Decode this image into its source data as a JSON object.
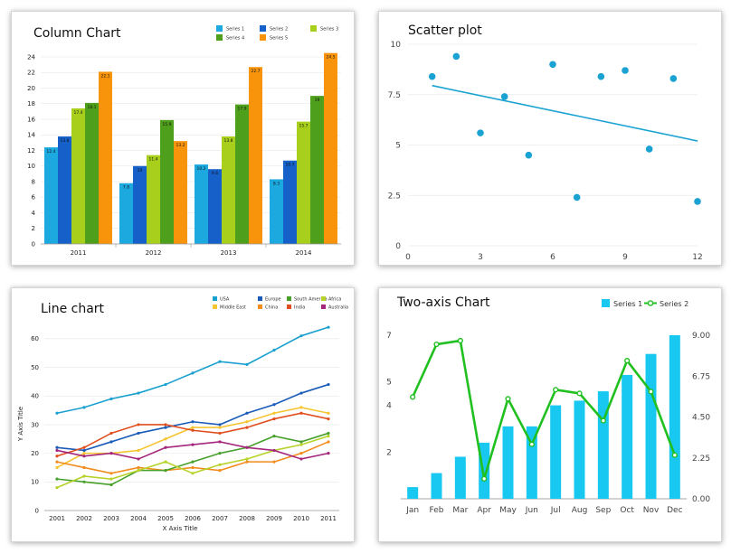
{
  "chart_data": [
    {
      "type": "bar",
      "title": "Column Chart",
      "categories": [
        "2011",
        "2012",
        "2013",
        "2014"
      ],
      "ylim": [
        0,
        24
      ],
      "yticks": [
        0,
        2,
        4,
        6,
        8,
        10,
        12,
        14,
        16,
        18,
        20,
        22,
        24
      ],
      "grid": true,
      "legend_position": "top-right",
      "series": [
        {
          "name": "Series 1",
          "color": "#1ba9e0",
          "values": [
            12.4,
            7.8,
            10.2,
            8.3
          ]
        },
        {
          "name": "Series 2",
          "color": "#1560c9",
          "values": [
            13.8,
            10,
            9.6,
            10.7
          ]
        },
        {
          "name": "Series 3",
          "color": "#a9cf1d",
          "values": [
            17.4,
            11.4,
            13.8,
            15.7
          ]
        },
        {
          "name": "Series 4",
          "color": "#4e9f1c",
          "values": [
            18.1,
            15.9,
            17.9,
            19
          ]
        },
        {
          "name": "Series 5",
          "color": "#f7940c",
          "values": [
            22.1,
            13.2,
            22.7,
            24.5
          ]
        }
      ]
    },
    {
      "type": "scatter",
      "title": "Scatter plot",
      "xlim": [
        0,
        12
      ],
      "xticks": [
        0,
        3,
        6,
        9,
        12
      ],
      "ylim": [
        0,
        10
      ],
      "yticks": [
        0,
        2.5,
        5,
        7.5,
        10
      ],
      "color": "#1aa3d2",
      "points": [
        {
          "x": 1,
          "y": 8.4
        },
        {
          "x": 2,
          "y": 9.4
        },
        {
          "x": 3,
          "y": 5.6
        },
        {
          "x": 4,
          "y": 7.4
        },
        {
          "x": 5,
          "y": 4.5
        },
        {
          "x": 6,
          "y": 9
        },
        {
          "x": 7,
          "y": 2.4
        },
        {
          "x": 8,
          "y": 8.4
        },
        {
          "x": 9,
          "y": 8.7
        },
        {
          "x": 10,
          "y": 4.8
        },
        {
          "x": 11,
          "y": 8.3
        },
        {
          "x": 12,
          "y": 2.2
        }
      ],
      "trendline": {
        "x": [
          1,
          12
        ],
        "y": [
          7.95,
          5.2
        ]
      }
    },
    {
      "type": "line",
      "title": "Line chart",
      "xlabel": "X Axis Title",
      "ylabel": "Y Axis Title",
      "categories": [
        "2001",
        "2002",
        "2003",
        "2004",
        "2005",
        "2006",
        "2007",
        "2008",
        "2009",
        "2010",
        "2011"
      ],
      "ylim": [
        0,
        65
      ],
      "yticks": [
        0,
        10,
        20,
        30,
        40,
        50,
        60
      ],
      "grid": true,
      "legend_position": "top-right",
      "series": [
        {
          "name": "USA",
          "color": "#1aa0cf",
          "values": [
            34,
            36,
            39,
            41,
            44,
            48,
            52,
            51,
            56,
            61,
            64
          ]
        },
        {
          "name": "Middle East",
          "color": "#f6c532",
          "values": [
            15,
            20,
            20,
            21,
            25,
            29,
            29,
            31,
            34,
            36,
            34
          ]
        },
        {
          "name": "Europe",
          "color": "#1a5bb8",
          "values": [
            22,
            21,
            24,
            27,
            29,
            31,
            30,
            34,
            37,
            41,
            44
          ]
        },
        {
          "name": "China",
          "color": "#f28c1c",
          "values": [
            17,
            15,
            13,
            15,
            14,
            15,
            14,
            17,
            17,
            20,
            24
          ]
        },
        {
          "name": "South America",
          "color": "#47a02a",
          "values": [
            11,
            10,
            9,
            14,
            14,
            17,
            20,
            22,
            26,
            24,
            27
          ]
        },
        {
          "name": "India",
          "color": "#e04e1f",
          "values": [
            19,
            22,
            27,
            30,
            30,
            28,
            27,
            29,
            32,
            34,
            32
          ]
        },
        {
          "name": "Africa",
          "color": "#b7d32a",
          "values": [
            8,
            12,
            11,
            14,
            17,
            13,
            16,
            18,
            21,
            23,
            26
          ]
        },
        {
          "name": "Australia",
          "color": "#a4277d",
          "values": [
            21,
            19,
            20,
            18,
            22,
            23,
            24,
            22,
            21,
            18,
            20
          ]
        }
      ]
    },
    {
      "type": "bar",
      "title": "Two-axis Chart",
      "categories": [
        "Jan",
        "Feb",
        "Mar",
        "Apr",
        "May",
        "Jun",
        "Jul",
        "Aug",
        "Sep",
        "Oct",
        "Nov",
        "Dec"
      ],
      "ylim": [
        0,
        7
      ],
      "yticks": [
        2,
        4,
        5,
        7
      ],
      "y2lim": [
        0,
        9
      ],
      "y2ticks": [
        "0.00",
        "2.25",
        "4.50",
        "6.75",
        "9.00"
      ],
      "legend_position": "top-right",
      "series": [
        {
          "name": "Series 1",
          "type": "bar",
          "color": "#18c8f0",
          "axis": "left",
          "values": [
            0.5,
            1.1,
            1.8,
            2.4,
            3.1,
            3.1,
            4,
            4.2,
            4.6,
            5.3,
            6.2,
            7
          ]
        },
        {
          "name": "Series 2",
          "type": "line",
          "color": "#20c020",
          "axis": "right",
          "values": [
            5.6,
            8.5,
            8.7,
            1.1,
            5.5,
            3,
            6,
            5.8,
            4.3,
            7.6,
            5.9,
            2.4
          ]
        }
      ]
    }
  ]
}
